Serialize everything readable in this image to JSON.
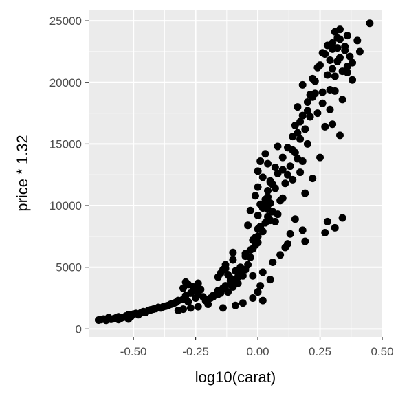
{
  "chart_data": {
    "type": "scatter",
    "title": "",
    "xlabel": "log10(carat)",
    "ylabel": "price * 1.32",
    "xlim": [
      -0.68,
      0.5
    ],
    "ylim": [
      -650,
      25900
    ],
    "x_ticks": [
      -0.5,
      -0.25,
      0.0,
      0.25,
      0.5
    ],
    "x_tick_labels": [
      "-0.50",
      "-0.25",
      "0.00",
      "0.25",
      "0.50"
    ],
    "y_ticks": [
      0,
      5000,
      10000,
      15000,
      20000,
      25000
    ],
    "y_tick_labels": [
      "0",
      "5000",
      "10000",
      "15000",
      "20000",
      "25000"
    ],
    "grid": true,
    "point_color": "#000000",
    "panel_background": "#ebebeb",
    "grid_color": "#ffffff",
    "series": [
      {
        "x": [
          -0.64,
          -0.63,
          -0.62,
          -0.61,
          -0.6,
          -0.6,
          -0.59,
          -0.58,
          -0.57,
          -0.56,
          -0.56,
          -0.55,
          -0.54,
          -0.53,
          -0.52,
          -0.52,
          -0.51,
          -0.5,
          -0.49,
          -0.48,
          -0.47,
          -0.46,
          -0.45,
          -0.44,
          -0.43,
          -0.42,
          -0.41,
          -0.4,
          -0.39,
          -0.38,
          -0.37,
          -0.36,
          -0.35,
          -0.34,
          -0.33,
          -0.32,
          -0.3,
          -0.3,
          -0.29,
          -0.29,
          -0.28,
          -0.28,
          -0.27,
          -0.26,
          -0.25,
          -0.25,
          -0.24,
          -0.24,
          -0.23,
          -0.22,
          -0.21,
          -0.2,
          -0.19,
          -0.18,
          -0.16,
          -0.16,
          -0.15,
          -0.15,
          -0.14,
          -0.14,
          -0.13,
          -0.13,
          -0.12,
          -0.12,
          -0.11,
          -0.11,
          -0.1,
          -0.1,
          -0.09,
          -0.09,
          -0.08,
          -0.07,
          -0.07,
          -0.06,
          -0.05,
          -0.05,
          -0.04,
          -0.04,
          -0.03,
          -0.03,
          -0.02,
          -0.02,
          -0.01,
          -0.01,
          0.0,
          0.0,
          0.0,
          0.0,
          0.01,
          0.01,
          0.01,
          0.02,
          0.02,
          0.02,
          0.03,
          0.03,
          0.03,
          0.04,
          0.04,
          0.04,
          0.05,
          0.05,
          0.05,
          0.06,
          0.06,
          0.07,
          0.07,
          0.08,
          0.08,
          0.09,
          0.1,
          0.11,
          0.12,
          0.13,
          0.14,
          0.15,
          0.15,
          0.16,
          0.16,
          0.17,
          0.17,
          0.18,
          0.18,
          0.19,
          0.2,
          0.21,
          0.22,
          0.23,
          0.24,
          0.25,
          0.26,
          0.27,
          0.28,
          0.29,
          0.29,
          0.3,
          0.3,
          0.31,
          0.31,
          0.32,
          0.32,
          0.33,
          0.33,
          0.34,
          0.35,
          0.36,
          0.37,
          0.45,
          -0.13,
          -0.1,
          -0.05,
          -0.01,
          0.0,
          0.01,
          0.03,
          0.04,
          0.05,
          0.08,
          0.1,
          0.12,
          0.14,
          0.17,
          0.18,
          0.2,
          0.21,
          0.22,
          0.24,
          0.26,
          0.28,
          0.3,
          0.32,
          0.33,
          0.35,
          0.36,
          0.38,
          0.4,
          -0.2,
          -0.24,
          -0.27,
          -0.3,
          -0.32,
          -0.18,
          -0.08,
          -0.02,
          0.02,
          0.06,
          0.09,
          0.11,
          0.13,
          0.15,
          0.19,
          0.22,
          0.25,
          0.27,
          0.29,
          0.31,
          0.34,
          0.36,
          0.38,
          0.41,
          -0.16,
          -0.11,
          -0.07,
          -0.03,
          0.0,
          0.04,
          0.07,
          0.1,
          0.14,
          0.16,
          0.2,
          0.23,
          0.26,
          0.3,
          0.33,
          0.31,
          0.28,
          0.18,
          0.05,
          0.0,
          -0.02,
          0.01,
          0.12,
          0.19,
          0.27,
          0.34,
          -0.14,
          -0.09,
          -0.06,
          0.02
        ],
        "y": [
          720,
          760,
          800,
          700,
          850,
          920,
          780,
          820,
          900,
          760,
          980,
          870,
          950,
          1050,
          800,
          1150,
          1000,
          1200,
          1250,
          1150,
          1300,
          1400,
          1350,
          1500,
          1550,
          1600,
          1650,
          1750,
          1700,
          1800,
          1850,
          1900,
          2000,
          2050,
          2150,
          2300,
          2400,
          3300,
          2700,
          3800,
          2200,
          3600,
          2900,
          3400,
          2500,
          3100,
          2800,
          3700,
          3200,
          2600,
          2300,
          2400,
          2500,
          2700,
          3100,
          4200,
          2900,
          4500,
          3300,
          4800,
          3500,
          5200,
          3000,
          4400,
          3600,
          4100,
          3400,
          5600,
          3800,
          4700,
          4200,
          4600,
          5000,
          4300,
          4800,
          6100,
          5200,
          8400,
          5800,
          9600,
          6500,
          7200,
          6800,
          10800,
          7500,
          9200,
          11500,
          12800,
          8300,
          10100,
          13600,
          7900,
          9800,
          12300,
          8600,
          10500,
          14200,
          9100,
          11200,
          13400,
          8800,
          10200,
          12000,
          9500,
          11700,
          8700,
          13100,
          9300,
          14800,
          10400,
          10600,
          11800,
          12500,
          13200,
          12100,
          14300,
          16500,
          13800,
          18000,
          12700,
          15400,
          13600,
          19800,
          16200,
          15000,
          17200,
          18800,
          20100,
          17500,
          21400,
          19200,
          22300,
          20600,
          21800,
          19400,
          23200,
          21100,
          24100,
          20500,
          22800,
          21700,
          23500,
          22000,
          20900,
          22600,
          23800,
          22100,
          24800,
          4900,
          6200,
          5900,
          7400,
          7000,
          8200,
          9900,
          10700,
          11900,
          12600,
          13900,
          14700,
          15600,
          16800,
          17300,
          18400,
          19000,
          20300,
          21200,
          22400,
          23000,
          22700,
          23600,
          24300,
          22900,
          21300,
          20200,
          23400,
          2000,
          1800,
          1700,
          1600,
          1500,
          2600,
          3700,
          4300,
          4600,
          5400,
          6000,
          6600,
          7700,
          8900,
          11000,
          12200,
          13900,
          16400,
          17800,
          19300,
          18600,
          20800,
          21600,
          22500,
          2800,
          3900,
          4900,
          6400,
          8100,
          9700,
          11400,
          12900,
          14500,
          15900,
          17700,
          19100,
          18300,
          16600,
          15700,
          8200,
          8700,
          8000,
          4000,
          3000,
          2500,
          3500,
          6900,
          7100,
          7800,
          9000,
          1700,
          1900,
          2100,
          2300
        ]
      }
    ]
  }
}
